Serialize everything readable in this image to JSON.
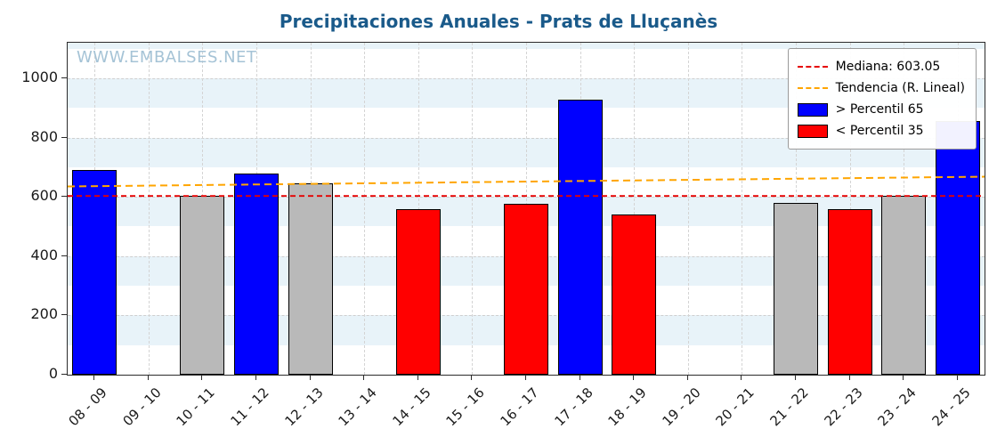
{
  "chart_data": {
    "type": "bar",
    "title": "Precipitaciones Anuales - Prats de Lluçanès",
    "watermark": "WWW.EMBALSES.NET",
    "xlabel": "",
    "ylabel": "",
    "categories": [
      "08 - 09",
      "09 - 10",
      "10 - 11",
      "11 - 12",
      "12 - 13",
      "13 - 14",
      "14 - 15",
      "15 - 16",
      "16 - 17",
      "17 - 18",
      "18 - 19",
      "19 - 20",
      "20 - 21",
      "21 - 22",
      "22 - 23",
      "23 - 24",
      "24 - 25"
    ],
    "values": [
      690,
      null,
      605,
      680,
      645,
      null,
      560,
      null,
      578,
      928,
      540,
      null,
      null,
      580,
      560,
      603,
      855
    ],
    "bar_classes": [
      "above",
      "none",
      "mid",
      "above",
      "mid",
      "none",
      "below",
      "none",
      "below",
      "above",
      "below",
      "none",
      "none",
      "mid",
      "below",
      "mid",
      "above"
    ],
    "colors": {
      "above": "#0000ff",
      "mid": "#b9b9b9",
      "below": "#ff0000",
      "median": "#e60000",
      "trend": "#ffa500",
      "band": "#e8f3f9",
      "title": "#1a5a8a",
      "watermark": "#a5c3d6"
    },
    "median": 603.05,
    "trend": {
      "start": 635,
      "end": 668
    },
    "ylim": [
      0,
      1120
    ],
    "yticks": [
      0,
      200,
      400,
      600,
      800,
      1000
    ],
    "grid": true,
    "legend_position": "upper right",
    "legend": {
      "items": [
        {
          "label": "Mediana: 603.05",
          "type": "dashed",
          "color": "#e60000"
        },
        {
          "label": "Tendencia (R. Lineal)",
          "type": "dashed",
          "color": "#ffa500"
        },
        {
          "label": "> Percentil 65",
          "type": "box",
          "color": "#0000ff"
        },
        {
          "label": "< Percentil 35",
          "type": "box",
          "color": "#ff0000"
        }
      ]
    }
  }
}
